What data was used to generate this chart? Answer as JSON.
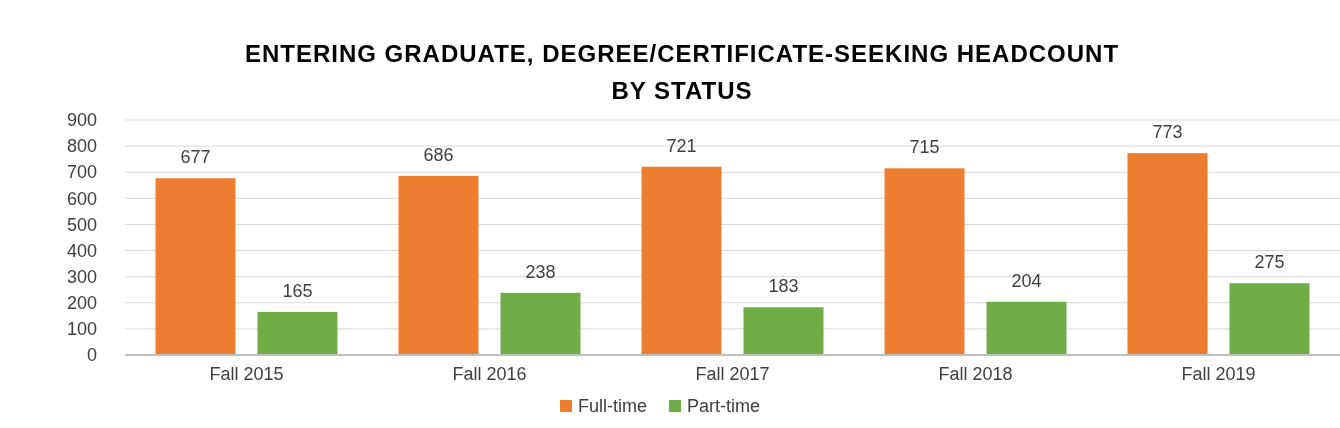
{
  "chart_data": {
    "type": "bar",
    "title": "ENTERING GRADUATE, DEGREE/CERTIFICATE-SEEKING HEADCOUNT BY STATUS",
    "categories": [
      "Fall 2015",
      "Fall 2016",
      "Fall 2017",
      "Fall 2018",
      "Fall 2019"
    ],
    "series": [
      {
        "name": "Full-time",
        "color": "#ed7d31",
        "values": [
          677,
          686,
          721,
          715,
          773
        ]
      },
      {
        "name": "Part-time",
        "color": "#70ad47",
        "values": [
          165,
          238,
          183,
          204,
          275
        ]
      }
    ],
    "ylim": [
      0,
      900
    ],
    "yticks": [
      0,
      100,
      200,
      300,
      400,
      500,
      600,
      700,
      800,
      900
    ],
    "grid": "y",
    "legend": "bottom",
    "data_labels": true
  }
}
